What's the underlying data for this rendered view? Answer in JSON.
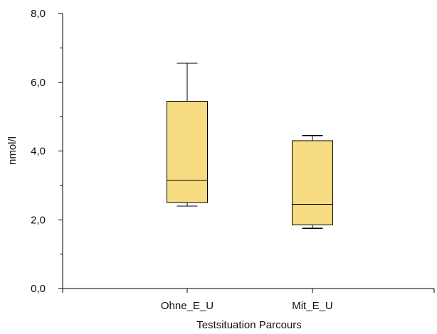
{
  "chart_data": {
    "type": "box",
    "xlabel": "Testsituation Parcours",
    "ylabel": "nmol/l",
    "ylim": [
      0,
      8
    ],
    "y_ticks": [
      "0,0",
      "2,0",
      "4,0",
      "6,0",
      "8,0"
    ],
    "y_tick_values": [
      0,
      2,
      4,
      6,
      8
    ],
    "y_minor_step": 1,
    "categories": [
      "Ohne_E_U",
      "Mit_E_U"
    ],
    "boxes": [
      {
        "category": "Ohne_E_U",
        "min": 2.4,
        "q1": 2.5,
        "median": 3.15,
        "q3": 5.45,
        "max": 6.55
      },
      {
        "category": "Mit_E_U",
        "min": 1.75,
        "q1": 1.85,
        "median": 2.45,
        "q3": 4.3,
        "max": 4.45
      }
    ],
    "box_fill": "#f7dc82",
    "grid": false
  }
}
